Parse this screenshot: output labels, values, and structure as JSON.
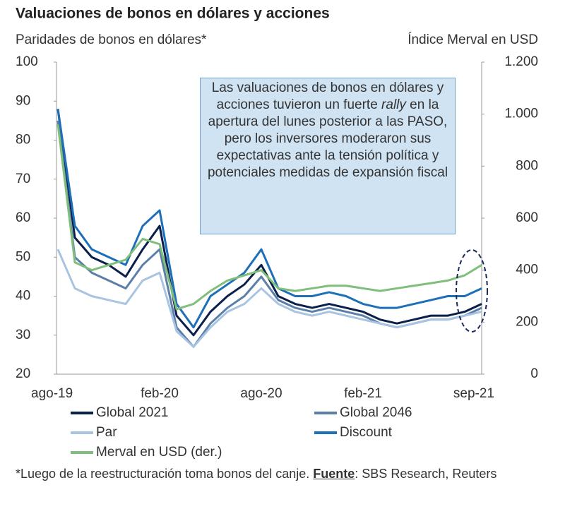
{
  "chart_data": {
    "type": "line",
    "title": "Valuaciones de bonos en dólares y acciones",
    "y_label": "Paridades de bonos en dólares*",
    "y2_label": "Índice Merval en USD",
    "categories": [
      "ago-19",
      null,
      null,
      null,
      null,
      null,
      "feb-20",
      null,
      null,
      null,
      null,
      null,
      "ago-20",
      null,
      null,
      null,
      null,
      null,
      "feb-21",
      null,
      null,
      null,
      null,
      null,
      null,
      "sep-21"
    ],
    "ylim": [
      20,
      100
    ],
    "yticks": [
      20,
      30,
      40,
      50,
      60,
      70,
      80,
      90,
      100
    ],
    "y2lim": [
      0,
      1200
    ],
    "y2ticks": [
      0,
      200,
      400,
      600,
      800,
      {
        "value": 1000,
        "label": "1.000"
      },
      {
        "value": 1200,
        "label": "1.200"
      }
    ],
    "series": [
      {
        "name": "Global 2021",
        "color": "#0b1f4b",
        "values": [
          88,
          55,
          50,
          48,
          45,
          52,
          58,
          35,
          30,
          36,
          40,
          43,
          48,
          40,
          38,
          37,
          38,
          37,
          36,
          34,
          33,
          34,
          35,
          35,
          36,
          38
        ]
      },
      {
        "name": "Global 2046",
        "color": "#5b7fa8",
        "values": [
          85,
          50,
          46,
          44,
          42,
          48,
          52,
          32,
          27,
          33,
          37,
          40,
          45,
          39,
          37,
          36,
          37,
          36,
          35,
          33,
          32,
          33,
          34,
          34,
          35,
          37
        ]
      },
      {
        "name": "Par",
        "color": "#a8c4e0",
        "values": [
          52,
          42,
          40,
          39,
          38,
          44,
          46,
          31,
          27,
          32,
          36,
          38,
          42,
          38,
          36,
          35,
          36,
          35,
          34,
          33,
          32,
          33,
          34,
          34,
          35,
          36
        ]
      },
      {
        "name": "Discount",
        "color": "#1d6fb8",
        "values": [
          88,
          58,
          52,
          50,
          48,
          58,
          62,
          38,
          32,
          40,
          43,
          46,
          52,
          42,
          40,
          40,
          41,
          40,
          38,
          37,
          37,
          38,
          39,
          40,
          40,
          42
        ]
      },
      {
        "name": "Merval en USD (der.)",
        "color": "#7fbf7b",
        "axis": "y2",
        "values": [
          960,
          430,
          400,
          420,
          440,
          520,
          500,
          250,
          270,
          320,
          360,
          380,
          400,
          330,
          320,
          330,
          340,
          340,
          330,
          320,
          330,
          340,
          350,
          360,
          380,
          420
        ]
      }
    ],
    "annotation": [
      "Las valuaciones de bonos en dólares y acciones tuvieron un fuerte ",
      "rally",
      " en la apertura del lunes posterior a las PASO, pero los inversores moderaron sus expectativas ante la tensión política y potenciales medidas de expansión fiscal"
    ],
    "footnote": [
      "*Luego de la reestructuración toma bonos del canje. ",
      "Fuente",
      ": SBS Research, Reuters"
    ]
  }
}
